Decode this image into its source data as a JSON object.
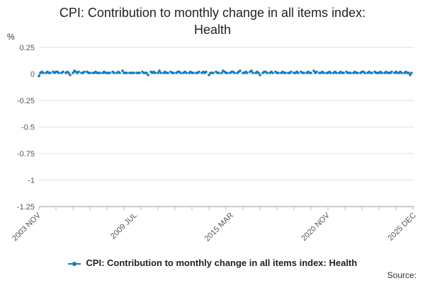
{
  "page": {
    "title_line1": "CPI: Contribution to monthly change in all items index:",
    "title_line2": "Health",
    "source_label": "Source:"
  },
  "chart_data": {
    "type": "line",
    "title": "CPI: Contribution to monthly change in all items index: Health",
    "ylabel": "%",
    "xlabel": "",
    "ylim": [
      -1.25,
      0.25
    ],
    "yticks": [
      0.25,
      0,
      -0.25,
      -0.5,
      -0.75,
      -1,
      -1.25
    ],
    "ytick_labels": [
      "0.25",
      "0",
      "-0.25",
      "-0.5",
      "-0.75",
      "-1",
      "-1.25"
    ],
    "x_range": [
      "2003 NOV",
      "2025 DEC"
    ],
    "xticks": [
      "2003 NOV",
      "2009 JUL",
      "2015 MAR",
      "2020 NOV",
      "2025 DEC"
    ],
    "grid": "horizontal",
    "legend_position": "bottom",
    "color": "#0f7cbf",
    "series": [
      {
        "name": "CPI: Contribution to monthly change in all items index: Health",
        "start": "2003 NOV",
        "frequency": "monthly",
        "values": [
          -0.02,
          0.01,
          0.02,
          0.01,
          null,
          0.01,
          0.02,
          0.01,
          0.01,
          null,
          0.02,
          0.01,
          0.02,
          0.02,
          0.01,
          null,
          0.01,
          0.02,
          null,
          0.01,
          0.02,
          0.01,
          -0.01,
          null,
          0.01,
          0.03,
          0.02,
          0.01,
          0.02,
          null,
          0.01,
          0.01,
          0.02,
          null,
          0.02,
          0.01,
          0.01,
          null,
          0.01,
          0.01,
          0.02,
          0.01,
          0.01,
          0.01,
          null,
          0.01,
          0.02,
          0.01,
          0.01,
          0.01,
          0.01,
          null,
          0.02,
          0.01,
          null,
          0.01,
          0.02,
          0.01,
          null,
          0.03,
          0.01,
          0.01,
          0.01,
          null,
          0.01,
          0.01,
          0.01,
          0.01,
          null,
          0.01,
          0.01,
          0.01,
          null,
          0.02,
          0.01,
          0.01,
          0.01,
          -0.01,
          null,
          0.02,
          0.01,
          0.02,
          0.01,
          null,
          0.01,
          0.03,
          0.01,
          null,
          0.01,
          0.02,
          0.01,
          0.01,
          null,
          0.02,
          0.01,
          0.01,
          null,
          0.01,
          0.02,
          0.02,
          0.01,
          null,
          0.01,
          0.02,
          0.01,
          null,
          0.01,
          0.02,
          0.01,
          0.01,
          null,
          0.01,
          0.01,
          0.02,
          null,
          0.01,
          0.02,
          0.01,
          0.02,
          null,
          -0.01,
          0.01,
          0.01,
          0.01,
          null,
          0.02,
          0.01,
          0.01,
          null,
          0.01,
          0.03,
          0.02,
          0.01,
          0.01,
          null,
          0.01,
          0.02,
          0.02,
          0.01,
          null,
          0.01,
          0.02,
          0.03,
          null,
          0.01,
          0.01,
          0.02,
          0.01,
          null,
          0.02,
          0.03,
          0.01,
          null,
          0.01,
          0.02,
          0.01,
          -0.01,
          null,
          0.01,
          0.02,
          0.02,
          0.01,
          null,
          0.01,
          0.02,
          0.01,
          null,
          0.02,
          0.01,
          0.01,
          null,
          0.01,
          0.02,
          0.01,
          0.01,
          null,
          0.01,
          0.01,
          0.02,
          null,
          0.01,
          0.01,
          0.02,
          0.01,
          null,
          0.02,
          0.01,
          0.01,
          null,
          0.01,
          0.02,
          0.01,
          0.01,
          null,
          0.03,
          0.01,
          0.02,
          null,
          0.01,
          0.01,
          0.02,
          0.01,
          null,
          0.01,
          0.01,
          0.02,
          0.01,
          null,
          0.01,
          0.02,
          0.01,
          null,
          0.01,
          0.02,
          0.01,
          0.01,
          null,
          0.02,
          0.01,
          0.01,
          0.01,
          null,
          0.01,
          0.02,
          0.01,
          0.01,
          null,
          0.01,
          0.02,
          0.02,
          0.01,
          null,
          0.01,
          0.02,
          0.01,
          0.01,
          null,
          0.02,
          0.01,
          0.01,
          0.01,
          0.02,
          0.01,
          null,
          0.01,
          0.02,
          0.01,
          0.01,
          0.01,
          0.02,
          null,
          0.01,
          0.02,
          0.01,
          0.01,
          0.02,
          0.01,
          null,
          0.01,
          0.02,
          0.01,
          0.01,
          -0.01,
          0.01
        ]
      }
    ]
  }
}
